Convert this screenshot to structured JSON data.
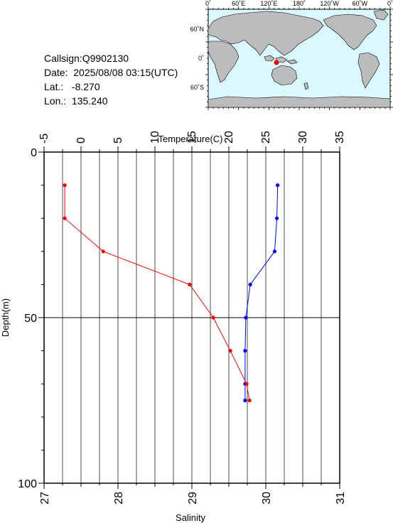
{
  "header": {
    "callsign": "Callsign:Q9902130",
    "date": "Date:  2025/08/08 03:15(UTC)",
    "lat": "Lat.:   -8.270",
    "lon": "Lon.:  135.240"
  },
  "map": {
    "top_ticks": [
      "0˚",
      "60˚E",
      "120˚E",
      "180˚",
      "120˚W",
      "60˚W",
      "0˚"
    ],
    "left_ticks": [
      "60˚N",
      "0˚",
      "60˚S"
    ],
    "ocean_color": "#d9f8ff",
    "land_color": "#bcbcbc",
    "marker_color": "#ff0000"
  },
  "chart_data": {
    "type": "line",
    "top_axis": {
      "label": "Temperature(C)",
      "range": [
        -5,
        35
      ],
      "ticks": [
        "-5",
        "0",
        "5",
        "10",
        "15",
        "20",
        "25",
        "30",
        "35"
      ]
    },
    "bottom_axis": {
      "label": "Salinity",
      "range": [
        27,
        31
      ],
      "ticks": [
        "27",
        "28",
        "29",
        "30",
        "31"
      ]
    },
    "y_axis": {
      "label": "Depth(m)",
      "range": [
        0,
        100
      ],
      "inverted": true,
      "ticks": [
        "0",
        "50",
        "100"
      ]
    },
    "grid": true,
    "series": [
      {
        "color": "#0000ff",
        "axis": "temperature",
        "points": [
          [
            26.6,
            10
          ],
          [
            26.5,
            20
          ],
          [
            26.2,
            30
          ],
          [
            22.9,
            40
          ],
          [
            22.3,
            50
          ],
          [
            22.2,
            60
          ],
          [
            22.2,
            70
          ],
          [
            22.2,
            75
          ]
        ]
      },
      {
        "color": "#ff0000",
        "axis": "salinity",
        "points": [
          [
            27.28,
            10
          ],
          [
            27.28,
            20
          ],
          [
            27.8,
            30
          ],
          [
            28.97,
            40
          ],
          [
            29.29,
            50
          ],
          [
            29.52,
            60
          ],
          [
            29.74,
            70
          ],
          [
            29.78,
            75
          ]
        ]
      }
    ]
  }
}
